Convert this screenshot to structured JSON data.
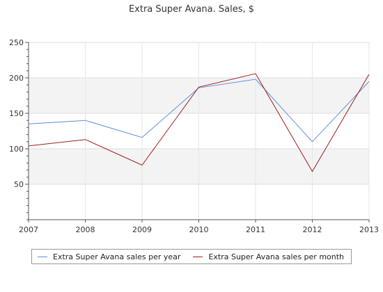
{
  "chart_data": {
    "type": "line",
    "title": "Extra Super Avana. Sales, $",
    "x": [
      "2007",
      "2008",
      "2009",
      "2010",
      "2011",
      "2012",
      "2013"
    ],
    "series": [
      {
        "name": "Extra Super Avana sales per year",
        "color": "#5b8fd6",
        "values": [
          135,
          140,
          116,
          186,
          198,
          110,
          195
        ]
      },
      {
        "name": "Extra Super Avana sales per month",
        "color": "#9e1c1c",
        "values": [
          104,
          113,
          77,
          187,
          206,
          68,
          205
        ]
      }
    ],
    "ylim": [
      0,
      250
    ],
    "yticks": [
      50,
      100,
      150,
      200,
      250
    ],
    "grid": true,
    "legend": "bottom"
  }
}
